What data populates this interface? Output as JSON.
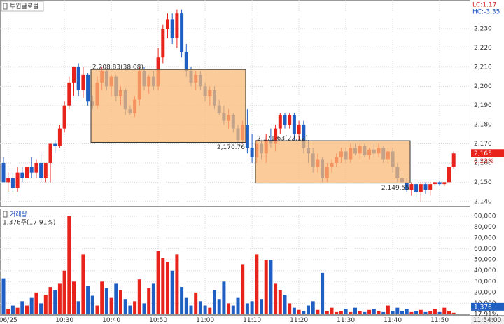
{
  "chart_data": {
    "type": "candlestick",
    "title": "투윈글로벌",
    "volume_title": "거래량",
    "info_lc": "LC:1.17",
    "info_hc": "HC:-3.35",
    "volume_info": "1,376주(17.91%)",
    "last_price": {
      "value": 2165,
      "label": "2,165"
    },
    "change_label": "0.23%",
    "last_volume": {
      "value": 1376,
      "label": "1,376"
    },
    "volume_ratio_label": "17.91%",
    "current_time": "11:54:00",
    "colors": {
      "up": "#e8231c",
      "down": "#1f5fc4",
      "box": "#f9b977"
    },
    "categories": [
      null,
      "06/25",
      null,
      null,
      null,
      null,
      null,
      null,
      null,
      null,
      null,
      null,
      null,
      "10:30",
      null,
      null,
      null,
      null,
      null,
      null,
      null,
      null,
      null,
      "10:40",
      null,
      null,
      null,
      null,
      null,
      null,
      null,
      null,
      null,
      "10:50",
      null,
      null,
      null,
      null,
      null,
      null,
      null,
      null,
      null,
      "11:00",
      null,
      null,
      null,
      null,
      null,
      null,
      null,
      null,
      null,
      "11:10",
      null,
      null,
      null,
      null,
      null,
      null,
      null,
      null,
      null,
      "11:20",
      null,
      null,
      null,
      null,
      null,
      null,
      null,
      null,
      null,
      "11:30",
      null,
      null,
      null,
      null,
      null,
      null,
      null,
      null,
      null,
      "11:40",
      null,
      null,
      null,
      null,
      null,
      null,
      null,
      null,
      null,
      "11:50",
      null,
      null,
      null
    ],
    "open": [
      2160,
      2150,
      2152,
      2147,
      2155,
      2152,
      2158,
      2155,
      2160,
      2152,
      2160,
      2170,
      2169,
      2178,
      2190,
      2202,
      2210,
      2198,
      2206,
      2192,
      2190,
      2202,
      2208,
      2200,
      2205,
      2195,
      2198,
      2188,
      2186,
      2193,
      2208,
      2200,
      2205,
      2200,
      2215,
      2230,
      2235,
      2225,
      2238,
      2218,
      2208,
      2202,
      2206,
      2200,
      2195,
      2198,
      2190,
      2186,
      2182,
      2185,
      2178,
      2172,
      2180,
      2168,
      2163,
      2170,
      2165,
      2172,
      2170,
      2178,
      2185,
      2180,
      2185,
      2175,
      2180,
      2168,
      2165,
      2158,
      2162,
      2152,
      2158,
      2160,
      2163,
      2166,
      2162,
      2168,
      2165,
      2169,
      2164,
      2167,
      2165,
      2168,
      2162,
      2166,
      2158,
      2152,
      2150,
      2146,
      2149,
      2145,
      2149,
      2146,
      2149,
      2150,
      2149,
      2150,
      2158
    ],
    "high": [
      2163,
      2155,
      2155,
      2158,
      2158,
      2160,
      2163,
      2162,
      2165,
      2160,
      2170,
      2172,
      2180,
      2192,
      2205,
      2210,
      2212,
      2210,
      2207,
      2195,
      2205,
      2210,
      2209,
      2206,
      2206,
      2200,
      2199,
      2190,
      2195,
      2210,
      2210,
      2206,
      2208,
      2220,
      2232,
      2238,
      2238,
      2240,
      2240,
      2222,
      2210,
      2208,
      2208,
      2202,
      2200,
      2200,
      2193,
      2190,
      2188,
      2186,
      2180,
      2182,
      2188,
      2175,
      2172,
      2171.63,
      2175,
      2178,
      2180,
      2186,
      2186,
      2186,
      2186,
      2182,
      2182,
      2172,
      2168,
      2165,
      2163,
      2160,
      2162,
      2165,
      2168,
      2168,
      2170,
      2170,
      2170,
      2170,
      2168,
      2170,
      2170,
      2169,
      2168,
      2168,
      2160,
      2155,
      2152,
      2150,
      2150,
      2150,
      2150,
      2150,
      2150,
      2151,
      2150,
      2160,
      2166
    ],
    "low": [
      2150,
      2145,
      2145,
      2145,
      2150,
      2150,
      2152,
      2152,
      2150,
      2150,
      2150,
      2165,
      2168,
      2176,
      2188,
      2195,
      2195,
      2194,
      2190,
      2188,
      2188,
      2198,
      2198,
      2195,
      2192,
      2190,
      2185,
      2185,
      2184,
      2190,
      2198,
      2196,
      2198,
      2198,
      2212,
      2225,
      2222,
      2220,
      2215,
      2205,
      2200,
      2198,
      2198,
      2192,
      2190,
      2188,
      2185,
      2180,
      2178,
      2176,
      2170.76,
      2170,
      2165,
      2160,
      2160,
      2162,
      2160,
      2168,
      2166,
      2175,
      2178,
      2178,
      2172,
      2172,
      2165,
      2160,
      2155,
      2155,
      2150,
      2150,
      2155,
      2158,
      2160,
      2160,
      2160,
      2164,
      2162,
      2163,
      2162,
      2163,
      2163,
      2160,
      2160,
      2155,
      2150,
      2149.55,
      2145,
      2143,
      2142,
      2140,
      2144,
      2143,
      2148,
      2148,
      2148,
      2149,
      2157
    ],
    "close": [
      2150,
      2152,
      2147,
      2155,
      2152,
      2158,
      2155,
      2160,
      2152,
      2160,
      2170,
      2169,
      2178,
      2190,
      2202,
      2210,
      2198,
      2206,
      2192,
      2190,
      2202,
      2208,
      2200,
      2205,
      2195,
      2198,
      2188,
      2186,
      2193,
      2208,
      2200,
      2205,
      2200,
      2215,
      2230,
      2235,
      2225,
      2238,
      2218,
      2208,
      2202,
      2206,
      2200,
      2195,
      2198,
      2190,
      2186,
      2182,
      2185,
      2178,
      2172,
      2180,
      2168,
      2163,
      2170,
      2165,
      2172,
      2170,
      2178,
      2185,
      2180,
      2185,
      2175,
      2180,
      2168,
      2165,
      2158,
      2162,
      2152,
      2158,
      2160,
      2163,
      2166,
      2162,
      2168,
      2165,
      2169,
      2164,
      2167,
      2165,
      2168,
      2162,
      2166,
      2158,
      2152,
      2150,
      2146,
      2149,
      2145,
      2149,
      2146,
      2149,
      2150,
      2149,
      2150,
      2158,
      2165
    ],
    "volume": [
      33000,
      5000,
      8000,
      6000,
      12000,
      8000,
      15000,
      20000,
      10000,
      18000,
      25000,
      22000,
      28000,
      40000,
      90000,
      30000,
      12000,
      55000,
      26000,
      17000,
      8000,
      30000,
      24000,
      15000,
      28000,
      22000,
      14000,
      8000,
      12000,
      32000,
      10000,
      24000,
      28000,
      58000,
      52000,
      48000,
      40000,
      55000,
      25000,
      15000,
      8000,
      20000,
      12000,
      8000,
      6000,
      22000,
      14000,
      30000,
      10000,
      8000,
      15000,
      46000,
      10000,
      12000,
      55000,
      14000,
      50000,
      50000,
      28000,
      22000,
      18000,
      10000,
      6000,
      4000,
      3000,
      8000,
      12000,
      4000,
      38000,
      3000,
      6000,
      2000,
      3000,
      5000,
      2000,
      6000,
      3000,
      2000,
      4000,
      5000,
      3000,
      2000,
      8000,
      3000,
      6000,
      3000,
      5000,
      2000,
      3000,
      4000,
      2000,
      3000,
      5000,
      2000,
      6000,
      3000,
      1376
    ],
    "ylim": [
      2137,
      2245
    ],
    "yticks": [
      {
        "value": 2140,
        "label": "2,140"
      },
      {
        "value": 2150,
        "label": "2,150"
      },
      {
        "value": 2160,
        "label": "2,160"
      },
      {
        "value": 2170,
        "label": "2,170"
      },
      {
        "value": 2180,
        "label": "2,180"
      },
      {
        "value": 2190,
        "label": "2,190"
      },
      {
        "value": 2200,
        "label": "2,200"
      },
      {
        "value": 2210,
        "label": "2,210"
      },
      {
        "value": 2220,
        "label": "2,220"
      },
      {
        "value": 2230,
        "label": "2,230"
      }
    ],
    "vylim": [
      0,
      97000
    ],
    "vyticks": [
      {
        "value": 10000,
        "label": "10,000"
      },
      {
        "value": 20000,
        "label": "20,000"
      },
      {
        "value": 30000,
        "label": "30,000"
      },
      {
        "value": 40000,
        "label": "40,000"
      },
      {
        "value": 50000,
        "label": "50,000"
      },
      {
        "value": 60000,
        "label": "60,000"
      },
      {
        "value": 70000,
        "label": "70,000"
      },
      {
        "value": 80000,
        "label": "80,000"
      },
      {
        "value": 90000,
        "label": "90,000"
      }
    ],
    "grid": true,
    "boxes": [
      {
        "high": {
          "value": 2208.83,
          "label": "2,208.83(38.08)"
        },
        "low": {
          "value": 2170.76,
          "label": "2,170.76"
        }
      },
      {
        "high": {
          "value": 2171.63,
          "label": "2,171.63(22.12)"
        },
        "low": {
          "value": 2149.55,
          "label": "2,149.55"
        }
      }
    ]
  }
}
